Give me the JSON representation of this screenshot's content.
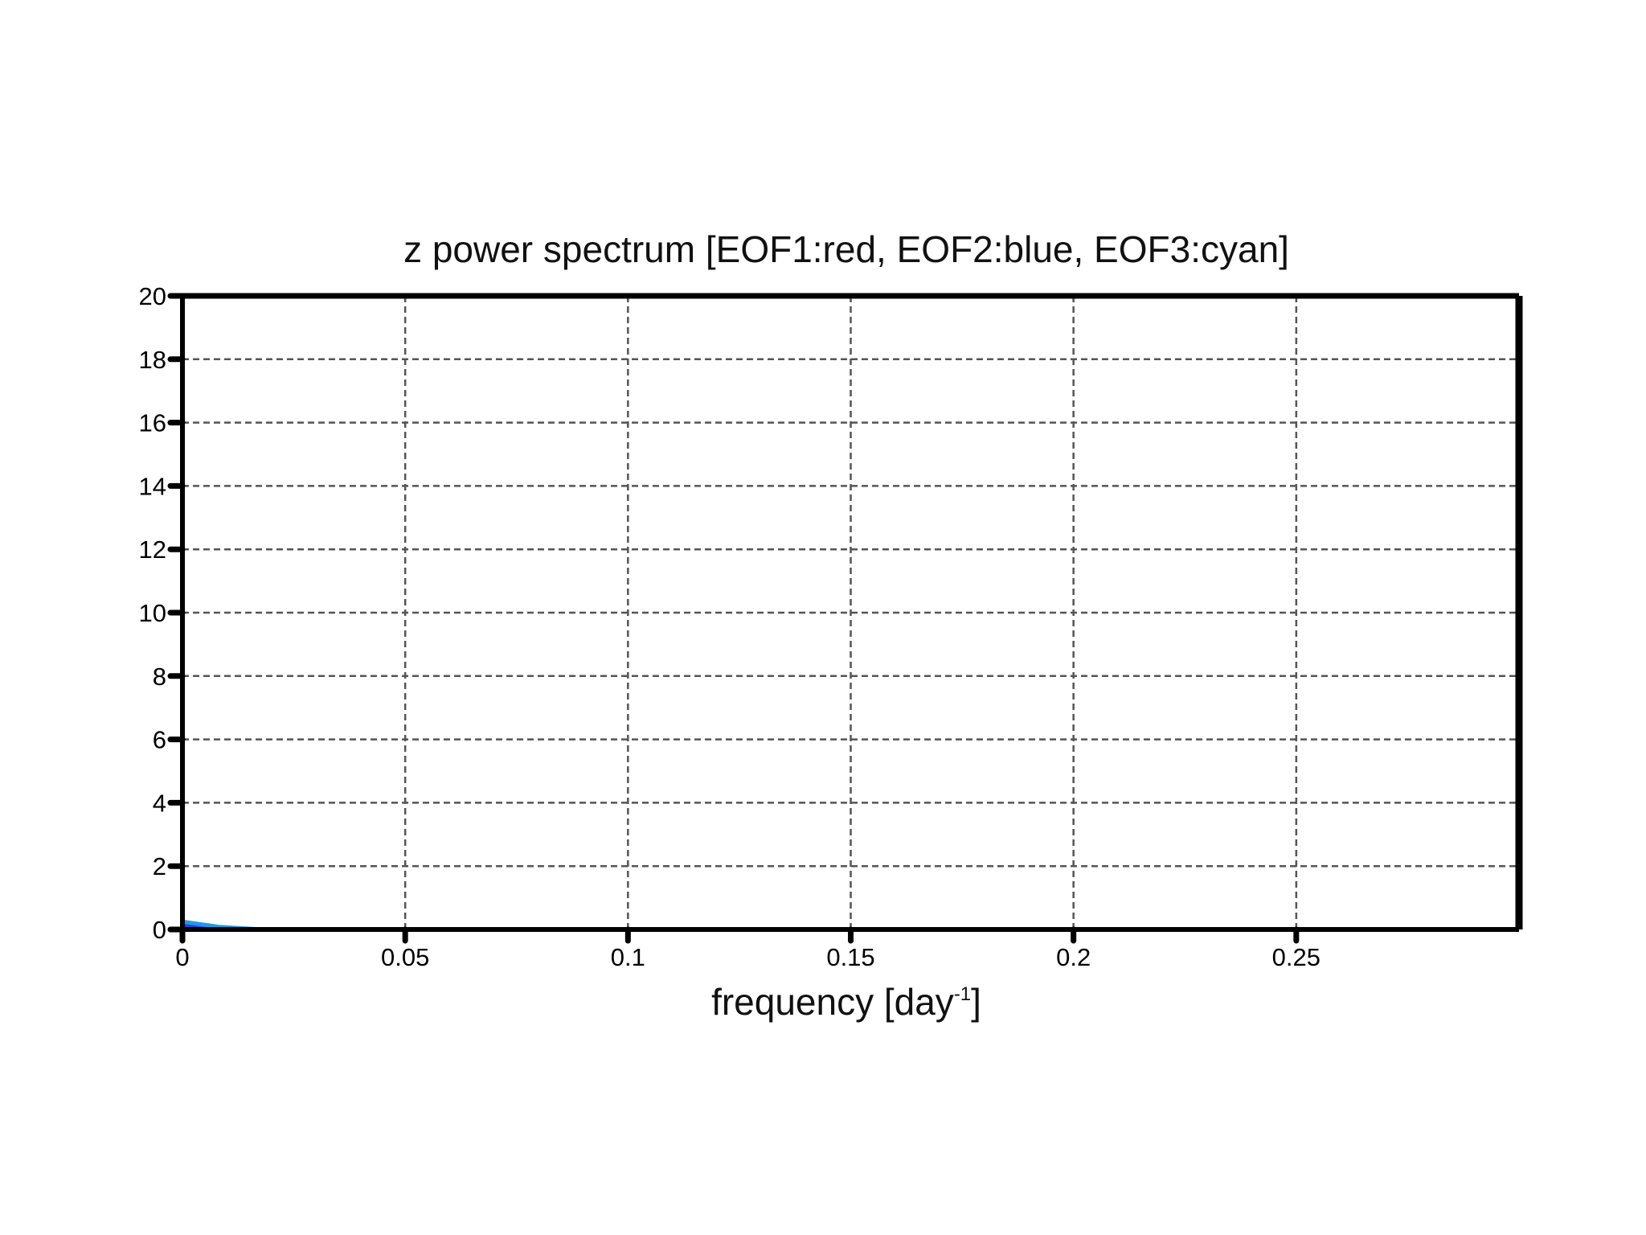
{
  "chart_data": {
    "type": "line",
    "title": "z power spectrum [EOF1:red, EOF2:blue, EOF3:cyan]",
    "xlabel": "frequency [day",
    "xlabel_sup": "-1",
    "xlabel_suffix": "]",
    "ylabel": "",
    "xlim": [
      0,
      0.3
    ],
    "ylim": [
      0,
      20
    ],
    "x_ticks": [
      0,
      0.05,
      0.1,
      0.15,
      0.2,
      0.25
    ],
    "x_tick_labels": [
      "0",
      "0.05",
      "0.1",
      "0.15",
      "0.2",
      "0.25"
    ],
    "y_ticks": [
      0,
      2,
      4,
      6,
      8,
      10,
      12,
      14,
      16,
      18,
      20
    ],
    "y_tick_labels": [
      "0",
      "2",
      "4",
      "6",
      "8",
      "10",
      "12",
      "14",
      "16",
      "18",
      "20"
    ],
    "grid": true,
    "series": [
      {
        "color": "#e8312a",
        "x": [
          0,
          0.0083,
          0.0167,
          0.05,
          0.1,
          0.15,
          0.2,
          0.25,
          0.3
        ],
        "y": [
          0.1,
          0.02,
          0.01,
          0,
          0,
          0,
          0,
          0,
          0
        ]
      },
      {
        "color": "#2a3fd8",
        "x": [
          0,
          0.0083,
          0.0167,
          0.05,
          0.1,
          0.15,
          0.2,
          0.25,
          0.3
        ],
        "y": [
          0.15,
          0.04,
          0.01,
          0,
          0,
          0,
          0,
          0,
          0
        ]
      },
      {
        "color": "#1e9be6",
        "x": [
          0,
          0.0083,
          0.0167,
          0.05,
          0.1,
          0.15,
          0.2,
          0.25,
          0.3
        ],
        "y": [
          0.25,
          0.08,
          0.01,
          0,
          0,
          0,
          0,
          0,
          0
        ]
      }
    ]
  }
}
